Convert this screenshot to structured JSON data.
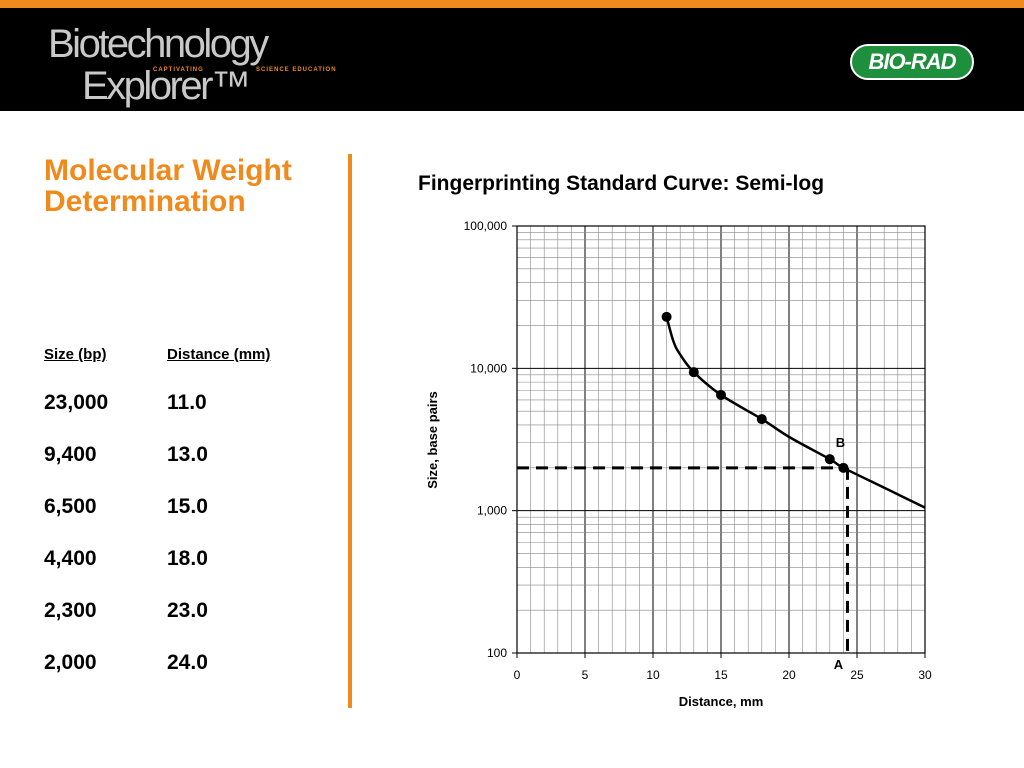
{
  "header": {
    "logo_line1": "Biotechnology",
    "logo_line2": "Explorer™",
    "logo_tagline_a": "CAPTIVATING",
    "logo_tagline_b": "SCIENCE EDUCATION",
    "brand": "BIO-RAD",
    "colors": {
      "stripe": "#f08a1c",
      "banner": "#000000",
      "brand_green": "#1e8f3c"
    }
  },
  "slide": {
    "title": "Molecular Weight Determination",
    "title_color": "#f08a1c"
  },
  "table": {
    "headers": [
      "Size (bp)",
      "Distance (mm)"
    ],
    "rows": [
      [
        "23,000",
        "11.0"
      ],
      [
        "9,400",
        "13.0"
      ],
      [
        "6,500",
        "15.0"
      ],
      [
        "4,400",
        "18.0"
      ],
      [
        "2,300",
        "23.0"
      ],
      [
        "2,000",
        "24.0"
      ]
    ]
  },
  "chart_data": {
    "type": "scatter",
    "title": "Fingerprinting Standard Curve:  Semi-log",
    "xlabel": "Distance, mm",
    "ylabel": "Size, base pairs",
    "xlim": [
      0,
      30
    ],
    "ylim": [
      100,
      100000
    ],
    "yscale": "log",
    "grid": true,
    "x_ticks": [
      "0",
      "5",
      "10",
      "15",
      "20",
      "25",
      "30"
    ],
    "y_ticks": [
      "100",
      "1,000",
      "10,000",
      "100,000"
    ],
    "points": [
      {
        "x": 11,
        "y": 23000
      },
      {
        "x": 13,
        "y": 9400
      },
      {
        "x": 15,
        "y": 6500
      },
      {
        "x": 18,
        "y": 4400
      },
      {
        "x": 23,
        "y": 2300
      },
      {
        "x": 24,
        "y": 2000
      }
    ],
    "fit_curve": [
      {
        "x": 11,
        "y": 23000
      },
      {
        "x": 11.5,
        "y": 15500
      },
      {
        "x": 12,
        "y": 12500
      },
      {
        "x": 13,
        "y": 9400
      },
      {
        "x": 15,
        "y": 6500
      },
      {
        "x": 18,
        "y": 4400
      },
      {
        "x": 20,
        "y": 3300
      },
      {
        "x": 23,
        "y": 2300
      },
      {
        "x": 24,
        "y": 2000
      },
      {
        "x": 27,
        "y": 1450
      },
      {
        "x": 30,
        "y": 1050
      }
    ],
    "annotations": [
      {
        "label": "A",
        "x": 24.3,
        "y": 100
      },
      {
        "label": "B",
        "x": 24,
        "y": 2000
      }
    ],
    "guide_lines": {
      "x": 24.3,
      "y": 2000
    }
  }
}
